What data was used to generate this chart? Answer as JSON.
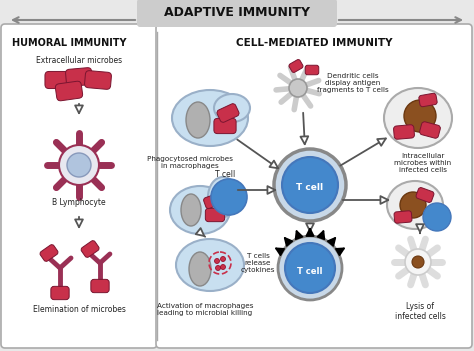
{
  "title": "ADAPTIVE IMMUNITY",
  "left_title": "HUMORAL IMMUNITY",
  "right_title": "CELL-MEDIATED IMMUNITY",
  "bg_color": "#e8e8e8",
  "panel_bg": "#ffffff",
  "border_color": "#aaaaaa",
  "microbe_color": "#c8304a",
  "cell_fill_light": "#d0e4f4",
  "cell_fill_blue": "#5590cc",
  "macrophage_fill": "#c8dff0",
  "nucleus_gray": "#b0b0b0",
  "nucleus_blue": "#a0b8d8",
  "nucleus_brown": "#8B5020",
  "t_cell_fill": "#4488cc",
  "antibody_color": "#9a3055",
  "arrow_white_fill": "#ffffff",
  "arrow_edge": "#555555",
  "text_color": "#222222",
  "labels": {
    "extracellular": "Extracellular microbes",
    "b_lymphocyte": "B Lymphocyte",
    "elimination": "Elemination of microbes",
    "phagocytosed": "Phagocytosed microbes\nin macrophages",
    "t_cell_label": "T cell",
    "dendritic": "Dendritic cells\ndisplay antigen\nfragments to T cells",
    "intracellular": "Intracellular\nmicrobes within\ninfected cells",
    "activation": "Activation of macrophages\nleading to microbial killing",
    "cytokines": "T cells\nrelease\ncytokines",
    "lysis": "Lysis of\ninfected cells"
  }
}
